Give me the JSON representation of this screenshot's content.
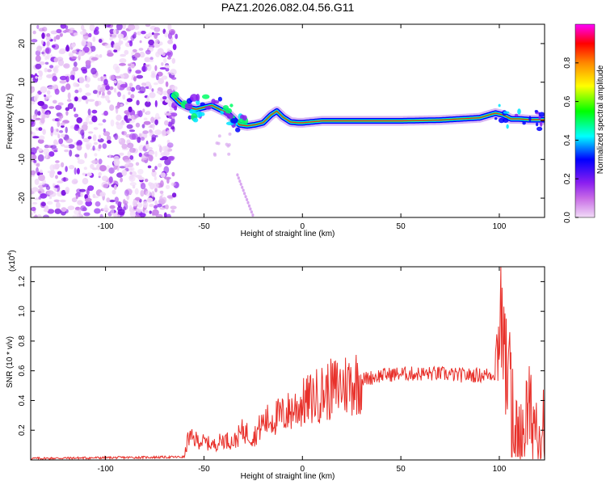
{
  "title": "PAZ1.2026.082.04.56.G11",
  "chart_data": [
    {
      "type": "heatmap",
      "title": "PAZ1.2026.082.04.56.G11",
      "xlabel": "Height of straight line (km)",
      "ylabel": "Frequency (Hz)",
      "xlim": [
        -138,
        123
      ],
      "ylim": [
        -25,
        25
      ],
      "xticks": [
        -100,
        -50,
        0,
        50,
        100
      ],
      "yticks": [
        -20,
        -10,
        0,
        10,
        20
      ],
      "ridge": {
        "x": [
          -66,
          -62,
          -58,
          -54,
          -50,
          -46,
          -42,
          -38,
          -35,
          -32,
          -28,
          -24,
          -20,
          -16,
          -13,
          -10,
          -6,
          -2,
          0,
          10,
          30,
          50,
          70,
          90,
          98,
          102,
          106,
          110,
          115,
          123
        ],
        "freq": [
          6.5,
          4.5,
          3.5,
          3.0,
          3.5,
          4.0,
          3.0,
          2.0,
          0.5,
          -1.0,
          -1.3,
          -1.0,
          -0.5,
          1.5,
          2.5,
          1.0,
          -0.3,
          -0.5,
          -0.5,
          0,
          0,
          0,
          0.2,
          0.8,
          2.0,
          1.5,
          0.5,
          0.5,
          0.3,
          0.3
        ]
      },
      "noise_region_x": [
        -138,
        -66
      ],
      "colorbar": {
        "label": "Normalized spectral amplitude",
        "ticks": [
          "0.0",
          "0.2",
          "0.4",
          "0.6",
          "0.8"
        ],
        "range": [
          0,
          1
        ],
        "colors": [
          "#f2dcf7",
          "#c76ae6",
          "#8a1ef0",
          "#0000ff",
          "#00ffff",
          "#00ff00",
          "#ffff00",
          "#ff8800",
          "#ff0000",
          "#ff00ff"
        ]
      }
    },
    {
      "type": "line",
      "xlabel": "Height of straight line (km)",
      "ylabel": "SNR (10 * v/v)",
      "scale_label": "(x10",
      "scale_exp": "4",
      "scale_close": ")",
      "xlim": [
        -138,
        123
      ],
      "ylim": [
        0,
        1.3
      ],
      "xticks": [
        -100,
        -50,
        0,
        50,
        100
      ],
      "yticks": [
        "0.2",
        "0.4",
        "0.6",
        "0.8",
        "1.0",
        "1.2"
      ],
      "color": "#e8302a",
      "envelope": {
        "x": [
          -138,
          -60,
          -58,
          -50,
          -45,
          -40,
          -35,
          -30,
          -25,
          -20,
          -15,
          -10,
          -5,
          0,
          10,
          20,
          30,
          40,
          50,
          60,
          70,
          80,
          90,
          98,
          100,
          102,
          104,
          106,
          108,
          110,
          112,
          115,
          120,
          123
        ],
        "snr": [
          0.01,
          0.02,
          0.15,
          0.12,
          0.1,
          0.14,
          0.12,
          0.2,
          0.15,
          0.25,
          0.28,
          0.3,
          0.34,
          0.38,
          0.45,
          0.5,
          0.54,
          0.57,
          0.58,
          0.58,
          0.58,
          0.57,
          0.57,
          0.58,
          0.9,
          0.8,
          0.5,
          0.65,
          0.2,
          0.15,
          0.25,
          0.3,
          0.25,
          0.27
        ]
      }
    }
  ]
}
